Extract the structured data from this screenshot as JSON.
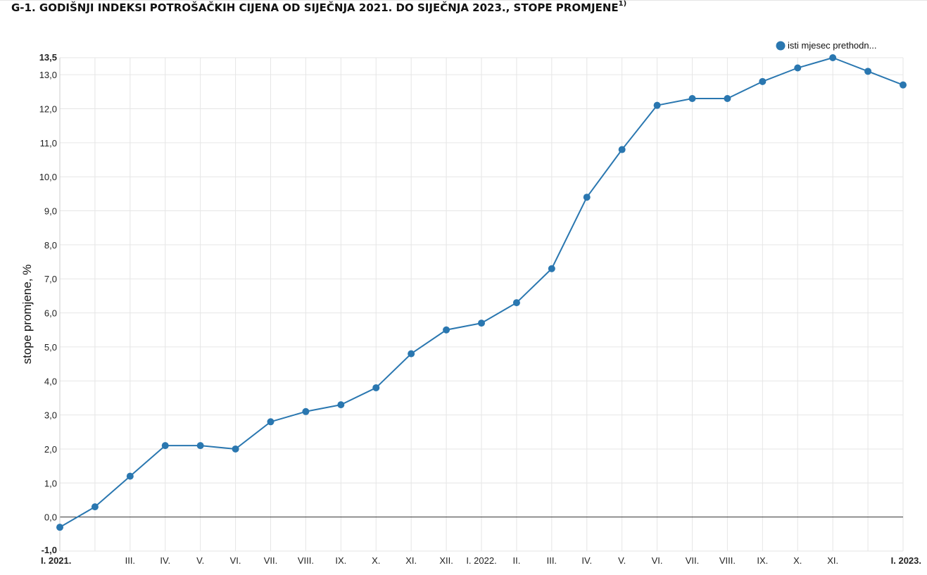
{
  "title": {
    "main": "G-1. GODIŠNJI INDEKSI POTROŠAČKIH CIJENA OD SIJEČNJA 2021. DO SIJEČNJA 2023., STOPE PROMJENE",
    "superscript": "1)"
  },
  "chart_data": {
    "type": "line",
    "title": "G-1. GODIŠNJI INDEKSI POTROŠAČKIH CIJENA OD SIJEČNJA 2021. DO SIJEČNJA 2023., STOPE PROMJENE",
    "xlabel": "",
    "ylabel": "stope promjene, %",
    "ylim": [
      -1.0,
      13.5
    ],
    "yticks": [
      "-1,0",
      "0,0",
      "1,0",
      "2,0",
      "3,0",
      "4,0",
      "5,0",
      "6,0",
      "7,0",
      "8,0",
      "9,0",
      "10,0",
      "11,0",
      "12,0",
      "13,0",
      "13,5"
    ],
    "ytick_values": [
      -1.0,
      0.0,
      1.0,
      2.0,
      3.0,
      4.0,
      5.0,
      6.0,
      7.0,
      8.0,
      9.0,
      10.0,
      11.0,
      12.0,
      13.0,
      13.5
    ],
    "categories": [
      "I. 2021.",
      "",
      "III.",
      "IV.",
      "V.",
      "VI.",
      "VII.",
      "VIII.",
      "IX.",
      "X.",
      "XI.",
      "XII.",
      "I. 2022.",
      "II.",
      "III.",
      "IV.",
      "V.",
      "VI.",
      "VII.",
      "VIII.",
      "IX.",
      "X.",
      "XI.",
      "",
      "I. 2023."
    ],
    "series": [
      {
        "name": "isti mjesec prethodn...",
        "color": "#2a77b0",
        "values": [
          -0.3,
          0.3,
          1.2,
          2.1,
          2.1,
          2.0,
          2.8,
          3.1,
          3.3,
          3.8,
          4.8,
          5.5,
          5.7,
          6.3,
          7.3,
          9.4,
          10.8,
          12.1,
          12.3,
          12.3,
          12.8,
          13.2,
          13.5,
          13.1,
          12.7
        ]
      }
    ],
    "grid": true,
    "legend_position": "top-right",
    "colors": {
      "line": "#2a77b0",
      "grid": "#e6e6e6",
      "zero_line": "#333333"
    }
  }
}
